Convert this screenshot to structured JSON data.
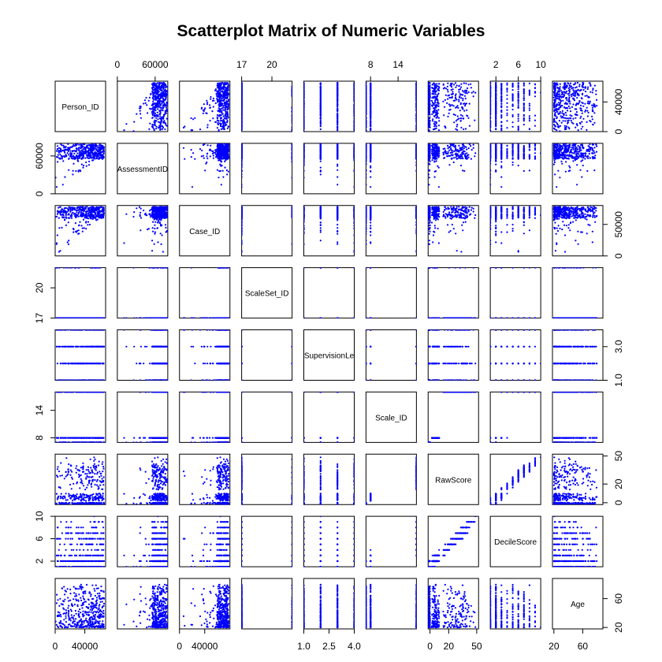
{
  "chart_data": {
    "type": "scatter",
    "title": "Scatterplot Matrix of Numeric Variables",
    "variables": [
      "Person_ID",
      "AssessmentID",
      "Case_ID",
      "ScaleSet_ID",
      "SupervisionLevel",
      "Scale_ID",
      "RawScore",
      "DecileScore",
      "Age"
    ],
    "diagonal_labels": [
      "Person_ID",
      "AssessmentID",
      "Case_ID",
      "ScaleSet_ID",
      "SupervisionLe",
      "Scale_ID",
      "RawScore",
      "DecileScore",
      "Age"
    ],
    "ranges": [
      [
        0,
        68000
      ],
      [
        0,
        80000
      ],
      [
        0,
        80000
      ],
      [
        17,
        22
      ],
      [
        1,
        4
      ],
      [
        7,
        18
      ],
      [
        -2,
        52
      ],
      [
        1,
        10
      ],
      [
        18,
        88
      ]
    ],
    "axes": {
      "top": [
        {
          "variable": "AssessmentID",
          "ticks": [
            0,
            60000
          ],
          "tick_labels": [
            "0",
            "60000"
          ]
        },
        {
          "variable": "ScaleSet_ID",
          "ticks": [
            17,
            20
          ],
          "tick_labels": [
            "17",
            "20"
          ]
        },
        {
          "variable": "Scale_ID",
          "ticks": [
            8,
            14
          ],
          "tick_labels": [
            "8",
            "14"
          ]
        },
        {
          "variable": "DecileScore",
          "ticks": [
            2,
            6,
            10
          ],
          "tick_labels": [
            "2",
            "6",
            "10"
          ]
        }
      ],
      "bottom": [
        {
          "variable": "Person_ID",
          "ticks": [
            0,
            40000
          ],
          "tick_labels": [
            "0",
            "40000"
          ]
        },
        {
          "variable": "Case_ID",
          "ticks": [
            0,
            40000
          ],
          "tick_labels": [
            "0",
            "40000"
          ]
        },
        {
          "variable": "SupervisionLevel",
          "ticks": [
            1.0,
            2.5,
            4.0
          ],
          "tick_labels": [
            "1.0",
            "2.5",
            "4.0"
          ]
        },
        {
          "variable": "RawScore",
          "ticks": [
            0,
            20,
            50
          ],
          "tick_labels": [
            "0",
            "20",
            "50"
          ]
        },
        {
          "variable": "Age",
          "ticks": [
            20,
            60
          ],
          "tick_labels": [
            "20",
            "60"
          ]
        }
      ],
      "left": [
        {
          "variable": "AssessmentID",
          "ticks": [
            0,
            60000
          ],
          "tick_labels": [
            "0",
            "60000"
          ]
        },
        {
          "variable": "ScaleSet_ID",
          "ticks": [
            17,
            20
          ],
          "tick_labels": [
            "17",
            "20"
          ]
        },
        {
          "variable": "Scale_ID",
          "ticks": [
            8,
            14
          ],
          "tick_labels": [
            "8",
            "14"
          ]
        },
        {
          "variable": "DecileScore",
          "ticks": [
            2,
            6,
            10
          ],
          "tick_labels": [
            "2",
            "6",
            "10"
          ]
        }
      ],
      "right": [
        {
          "variable": "Person_ID",
          "ticks": [
            0,
            40000
          ],
          "tick_labels": [
            "0",
            "40000"
          ]
        },
        {
          "variable": "Case_ID",
          "ticks": [
            0,
            50000
          ],
          "tick_labels": [
            "0",
            "50000"
          ]
        },
        {
          "variable": "SupervisionLevel",
          "ticks": [
            1.0,
            3.0
          ],
          "tick_labels": [
            "1.0",
            "3.0"
          ]
        },
        {
          "variable": "RawScore",
          "ticks": [
            0,
            20,
            50
          ],
          "tick_labels": [
            "0",
            "20",
            "50"
          ]
        },
        {
          "variable": "Age",
          "ticks": [
            20,
            60
          ],
          "tick_labels": [
            "20",
            "60"
          ]
        }
      ]
    },
    "point_color": "#0000ff",
    "frame_color": "#000000",
    "background": "#ffffff"
  }
}
